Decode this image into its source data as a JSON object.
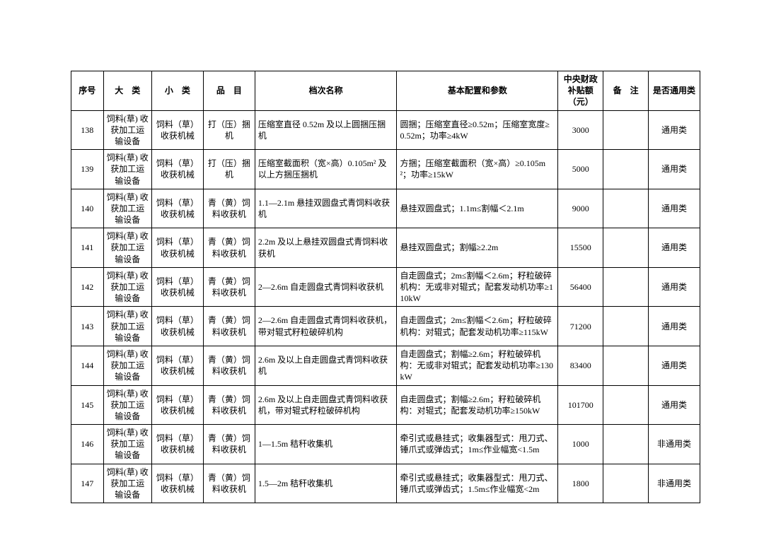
{
  "table": {
    "columns": [
      "序号",
      "大　类",
      "小　类",
      "品　目",
      "档次名称",
      "基本配置和参数",
      "中央财政补贴额（元）",
      "备　注",
      "是否通用类"
    ],
    "col_align": [
      "center",
      "center",
      "center",
      "center",
      "left",
      "left",
      "center",
      "center",
      "center"
    ],
    "rows": [
      [
        "138",
        "饲料(草) 收获加工运输设备",
        "饲料（草）收获机械",
        "打（压）捆机",
        "压缩室直径 0.52m 及以上圆捆压捆机",
        "圆捆；压缩室直径≥0.52m；压缩室宽度≥0.52m；功率≥4kW",
        "3000",
        "",
        "通用类"
      ],
      [
        "139",
        "饲料(草) 收获加工运输设备",
        "饲料（草）收获机械",
        "打（压）捆机",
        "压缩室截面积（宽×高）0.105m² 及以上方捆压捆机",
        "方捆；压缩室截面积（宽×高）≥0.105m²；功率≥15kW",
        "5000",
        "",
        "通用类"
      ],
      [
        "140",
        "饲料(草) 收获加工运输设备",
        "饲料（草）收获机械",
        "青（黄）饲料收获机",
        "1.1—2.1m 悬挂双圆盘式青饲料收获机",
        "悬挂双圆盘式；1.1m≤割幅＜2.1m",
        "9000",
        "",
        "通用类"
      ],
      [
        "141",
        "饲料(草) 收获加工运输设备",
        "饲料（草）收获机械",
        "青（黄）饲料收获机",
        "2.2m 及以上悬挂双圆盘式青饲料收获机",
        "悬挂双圆盘式；割幅≥2.2m",
        "15500",
        "",
        "通用类"
      ],
      [
        "142",
        "饲料(草) 收获加工运输设备",
        "饲料（草）收获机械",
        "青（黄）饲料收获机",
        "2—2.6m 自走圆盘式青饲料收获机",
        "自走圆盘式；2m≤割幅＜2.6m；籽粒破碎机构：无或非对辊式；配套发动机功率≥110kW",
        "56400",
        "",
        "通用类"
      ],
      [
        "143",
        "饲料(草) 收获加工运输设备",
        "饲料（草）收获机械",
        "青（黄）饲料收获机",
        "2—2.6m 自走圆盘式青饲料收获机，带对辊式籽粒破碎机构",
        "自走圆盘式；2m≤割幅＜2.6m；籽粒破碎机构：对辊式；配套发动机功率≥115kW",
        "71200",
        "",
        "通用类"
      ],
      [
        "144",
        "饲料(草) 收获加工运输设备",
        "饲料（草）收获机械",
        "青（黄）饲料收获机",
        "2.6m 及以上自走圆盘式青饲料收获机",
        "自走圆盘式；割幅≥2.6m；籽粒破碎机构：无或非对辊式；配套发动机功率≥130kW",
        "83400",
        "",
        "通用类"
      ],
      [
        "145",
        "饲料(草) 收获加工运输设备",
        "饲料（草）收获机械",
        "青（黄）饲料收获机",
        "2.6m 及以上自走圆盘式青饲料收获机，带对辊式籽粒破碎机构",
        "自走圆盘式；割幅≥2.6m；籽粒破碎机构：对辊式；配套发动机功率≥150kW",
        "101700",
        "",
        "通用类"
      ],
      [
        "146",
        "饲料(草) 收获加工运输设备",
        "饲料（草）收获机械",
        "青（黄）饲料收获机",
        "1—1.5m 秸秆收集机",
        "牵引式或悬挂式；收集器型式：甩刀式、锤爪式或弹齿式；1m≤作业幅宽<1.5m",
        "1000",
        "",
        "非通用类"
      ],
      [
        "147",
        "饲料(草) 收获加工运输设备",
        "饲料（草）收获机械",
        "青（黄）饲料收获机",
        "1.5—2m 秸秆收集机",
        "牵引式或悬挂式；收集器型式：甩刀式、锤爪式或弹齿式；1.5m≤作业幅宽<2m",
        "1800",
        "",
        "非通用类"
      ]
    ]
  }
}
